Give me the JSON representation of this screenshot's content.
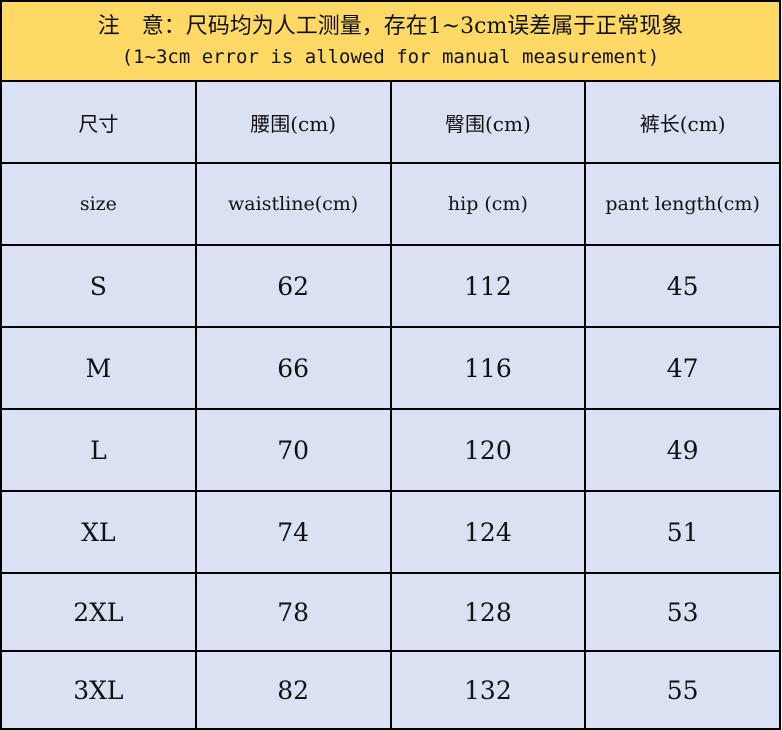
{
  "note": {
    "zh": "注　意：尺码均为人工测量，存在1~3cm误差属于正常现象",
    "en": "(1~3cm error is allowed for manual measurement)"
  },
  "colors": {
    "note_bg": "#FFD966",
    "table_bg": "#D9E1F2"
  },
  "headers_zh": [
    "尺寸",
    "腰围(cm)",
    "臀围(cm)",
    "裤长(cm)"
  ],
  "headers_en": [
    "size",
    "waistline(cm)",
    "hip (cm)",
    "pant length(cm)"
  ],
  "rows": [
    [
      "S",
      "62",
      "112",
      "45"
    ],
    [
      "M",
      "66",
      "116",
      "47"
    ],
    [
      "L",
      "70",
      "120",
      "49"
    ],
    [
      "XL",
      "74",
      "124",
      "51"
    ],
    [
      "2XL",
      "78",
      "128",
      "53"
    ],
    [
      "3XL",
      "82",
      "132",
      "55"
    ]
  ]
}
